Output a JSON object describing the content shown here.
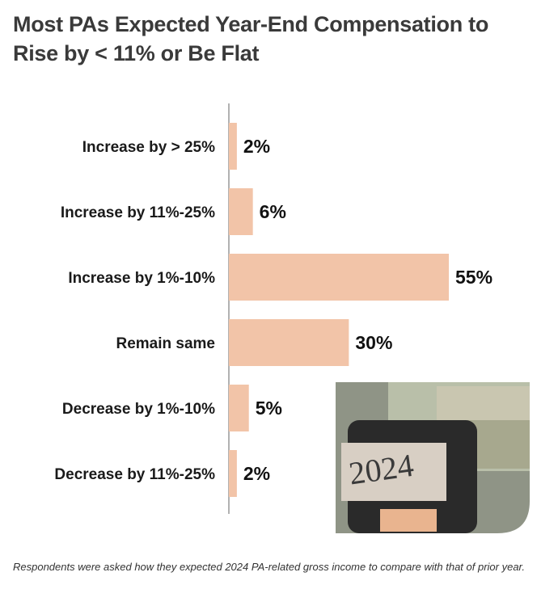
{
  "chart_data": {
    "type": "bar",
    "orientation": "horizontal",
    "title": "Most PAs Expected Year-End Compensation to Rise by < 11% or Be Flat",
    "categories": [
      "Increase by > 25%",
      "Increase by 11%-25%",
      "Increase by 1%-10%",
      "Remain same",
      "Decrease by 1%-10%",
      "Decrease by 11%-25%"
    ],
    "values": [
      2,
      6,
      55,
      30,
      5,
      2
    ],
    "value_labels": [
      "2%",
      "6%",
      "55%",
      "30%",
      "5%",
      "2%"
    ],
    "color": "#f2c4a8",
    "note": "Respondents were asked how they expected 2024 PA-related gross income to compare with that of prior year.",
    "image_text": "2024"
  }
}
